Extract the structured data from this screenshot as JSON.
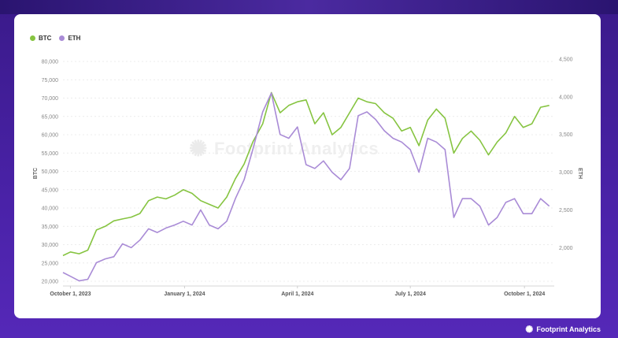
{
  "legend": [
    {
      "name": "BTC",
      "color": "#86c441"
    },
    {
      "name": "ETH",
      "color": "#a98bd6"
    }
  ],
  "watermark": "Footprint Analytics",
  "brand": {
    "name": "Footprint Analytics",
    "icon": "footprint-logo-icon"
  },
  "chart_data": {
    "type": "line",
    "x_ticks": [
      "October 1, 2023",
      "January 1, 2024",
      "April 1, 2024",
      "July 1, 2024",
      "October 1, 2024"
    ],
    "y_left": {
      "label": "BTC",
      "min": 20000,
      "max": 80000,
      "ticks": [
        "80,000",
        "75,000",
        "70,000",
        "65,000",
        "60,000",
        "55,000",
        "50,000",
        "45,000",
        "40,000",
        "35,000",
        "30,000",
        "25,000",
        "20,000"
      ]
    },
    "y_right": {
      "label": "ETH",
      "min": 1000,
      "max": 4500,
      "ticks": [
        "4,500",
        "4,000",
        "3,500",
        "3,000",
        "2,500",
        "2,000",
        "1,500"
      ]
    },
    "grid": true,
    "legend_position": "top-left",
    "series": [
      {
        "name": "BTC",
        "axis": "left",
        "color": "#86c441",
        "x": [
          "2023-09-25",
          "2023-10-01",
          "2023-10-08",
          "2023-10-15",
          "2023-10-22",
          "2023-10-29",
          "2023-11-05",
          "2023-11-12",
          "2023-11-19",
          "2023-11-26",
          "2023-12-03",
          "2023-12-10",
          "2023-12-17",
          "2023-12-24",
          "2023-12-31",
          "2024-01-07",
          "2024-01-14",
          "2024-01-21",
          "2024-01-28",
          "2024-02-04",
          "2024-02-11",
          "2024-02-18",
          "2024-02-25",
          "2024-03-04",
          "2024-03-11",
          "2024-03-18",
          "2024-03-25",
          "2024-04-01",
          "2024-04-08",
          "2024-04-15",
          "2024-04-22",
          "2024-04-29",
          "2024-05-06",
          "2024-05-13",
          "2024-05-20",
          "2024-05-27",
          "2024-06-03",
          "2024-06-10",
          "2024-06-17",
          "2024-06-24",
          "2024-07-01",
          "2024-07-08",
          "2024-07-15",
          "2024-07-22",
          "2024-07-29",
          "2024-08-05",
          "2024-08-12",
          "2024-08-19",
          "2024-08-26",
          "2024-09-02",
          "2024-09-09",
          "2024-09-16",
          "2024-09-23",
          "2024-09-30",
          "2024-10-07",
          "2024-10-14",
          "2024-10-21"
        ],
        "values": [
          27000,
          28000,
          27500,
          28500,
          34000,
          35000,
          36500,
          37000,
          37500,
          38500,
          42000,
          43000,
          42500,
          43500,
          45000,
          44000,
          42000,
          41000,
          40000,
          43000,
          48000,
          52000,
          58000,
          63000,
          71500,
          66000,
          68000,
          69000,
          69500,
          63000,
          66000,
          60000,
          62000,
          66000,
          70000,
          69000,
          68500,
          66000,
          64500,
          61000,
          62000,
          57000,
          64000,
          67000,
          64500,
          55000,
          59000,
          61000,
          58500,
          54500,
          58000,
          60500,
          65000,
          62000,
          63000,
          67500,
          68000
        ]
      },
      {
        "name": "ETH",
        "axis": "right",
        "color": "#a98bd6",
        "x": [
          "2023-09-25",
          "2023-10-01",
          "2023-10-08",
          "2023-10-15",
          "2023-10-22",
          "2023-10-29",
          "2023-11-05",
          "2023-11-12",
          "2023-11-19",
          "2023-11-26",
          "2023-12-03",
          "2023-12-10",
          "2023-12-17",
          "2023-12-24",
          "2023-12-31",
          "2024-01-07",
          "2024-01-14",
          "2024-01-21",
          "2024-01-28",
          "2024-02-04",
          "2024-02-11",
          "2024-02-18",
          "2024-02-25",
          "2024-03-04",
          "2024-03-11",
          "2024-03-18",
          "2024-03-25",
          "2024-04-01",
          "2024-04-08",
          "2024-04-15",
          "2024-04-22",
          "2024-04-29",
          "2024-05-06",
          "2024-05-13",
          "2024-05-20",
          "2024-05-27",
          "2024-06-03",
          "2024-06-10",
          "2024-06-17",
          "2024-06-24",
          "2024-07-01",
          "2024-07-08",
          "2024-07-15",
          "2024-07-22",
          "2024-07-29",
          "2024-08-05",
          "2024-08-12",
          "2024-08-19",
          "2024-08-26",
          "2024-09-02",
          "2024-09-09",
          "2024-09-16",
          "2024-09-23",
          "2024-09-30",
          "2024-10-07",
          "2024-10-14",
          "2024-10-21"
        ],
        "values": [
          1670,
          1620,
          1560,
          1580,
          1800,
          1850,
          1880,
          2050,
          2000,
          2100,
          2250,
          2200,
          2260,
          2300,
          2350,
          2300,
          2500,
          2300,
          2250,
          2350,
          2650,
          2900,
          3300,
          3800,
          4050,
          3500,
          3450,
          3600,
          3100,
          3050,
          3150,
          3000,
          2900,
          3050,
          3750,
          3800,
          3700,
          3550,
          3450,
          3400,
          3300,
          3000,
          3450,
          3400,
          3300,
          2400,
          2650,
          2650,
          2550,
          2300,
          2400,
          2600,
          2650,
          2450,
          2450,
          2650,
          2550
        ]
      }
    ]
  }
}
